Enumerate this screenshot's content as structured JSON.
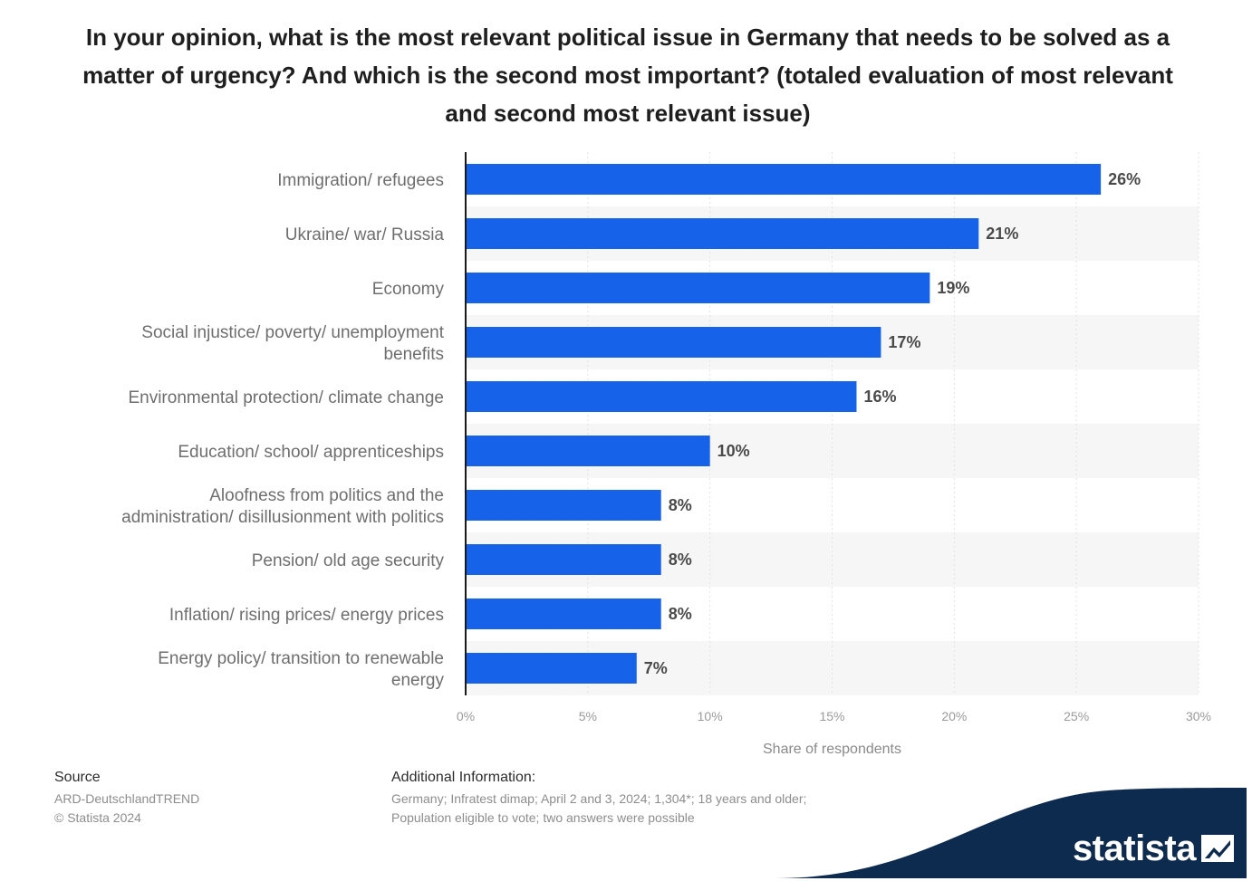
{
  "title": "In your opinion, what is the most relevant political issue in Germany that needs to be solved as a matter of urgency? And which is the second most important? (totaled evaluation of most relevant and second most relevant issue)",
  "chart_data": {
    "type": "bar",
    "orientation": "horizontal",
    "categories": [
      [
        "Immigration/ refugees"
      ],
      [
        "Ukraine/ war/ Russia"
      ],
      [
        "Economy"
      ],
      [
        "Social injustice/ poverty/ unemployment",
        "benefits"
      ],
      [
        "Environmental protection/ climate change"
      ],
      [
        "Education/ school/ apprenticeships"
      ],
      [
        "Aloofness from politics and the",
        "administration/ disillusionment with politics"
      ],
      [
        "Pension/ old age security"
      ],
      [
        "Inflation/ rising prices/ energy prices"
      ],
      [
        "Energy policy/ transition to renewable",
        "energy"
      ]
    ],
    "values": [
      26,
      21,
      19,
      17,
      16,
      10,
      8,
      8,
      8,
      7
    ],
    "value_labels": [
      "26%",
      "21%",
      "19%",
      "17%",
      "16%",
      "10%",
      "8%",
      "8%",
      "8%",
      "7%"
    ],
    "xlim": [
      0,
      30
    ],
    "ticks": [
      0,
      5,
      10,
      15,
      20,
      25,
      30
    ],
    "tick_labels": [
      "0%",
      "5%",
      "10%",
      "15%",
      "20%",
      "25%",
      "30%"
    ],
    "xlabel": "Share of respondents",
    "ylabel": "",
    "bar_color": "#1662e8",
    "grid": true
  },
  "footer": {
    "source_heading": "Source",
    "source_lines": [
      "ARD-DeutschlandTREND",
      "© Statista 2024"
    ],
    "info_heading": "Additional Information:",
    "info_lines": [
      "Germany; Infratest dimap; April 2 and 3, 2024; 1,304*; 18 years and older;",
      "Population eligible to vote; two answers were possible"
    ]
  },
  "brand": {
    "name": "statista",
    "color": "#0d2a4f"
  }
}
